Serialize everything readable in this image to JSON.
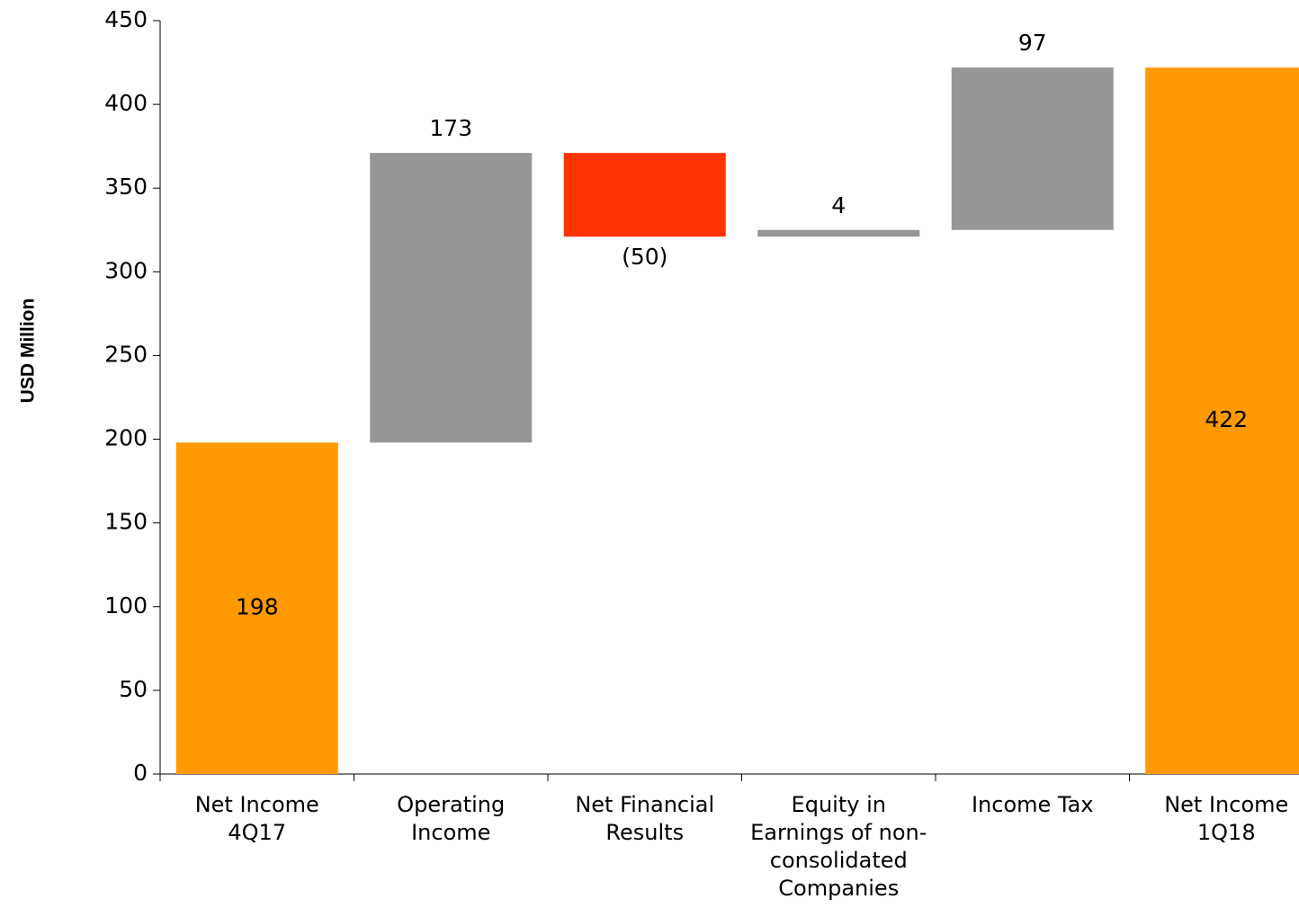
{
  "chart_data": {
    "type": "waterfall",
    "y_label": "USD Million",
    "categories": [
      "Net Income\n4Q17",
      "Operating\nIncome",
      "Net Financial\nResults",
      "Equity in\nEarnings of non-\nconsolidated\nCompanies",
      "Income Tax",
      "Net Income\n1Q18"
    ],
    "values": [
      198,
      173,
      -50,
      4,
      97,
      422
    ],
    "value_labels": [
      "198",
      "173",
      "(50)",
      "4",
      "97",
      "422"
    ],
    "measure": [
      "total",
      "relative",
      "relative",
      "relative",
      "relative",
      "total"
    ],
    "colors": [
      "#ff9900",
      "#969696",
      "#ff3300",
      "#969696",
      "#969696",
      "#ff9900"
    ],
    "ylim": [
      0,
      450
    ],
    "yticks": [
      0,
      50,
      100,
      150,
      200,
      250,
      300,
      350,
      400,
      450
    ]
  }
}
